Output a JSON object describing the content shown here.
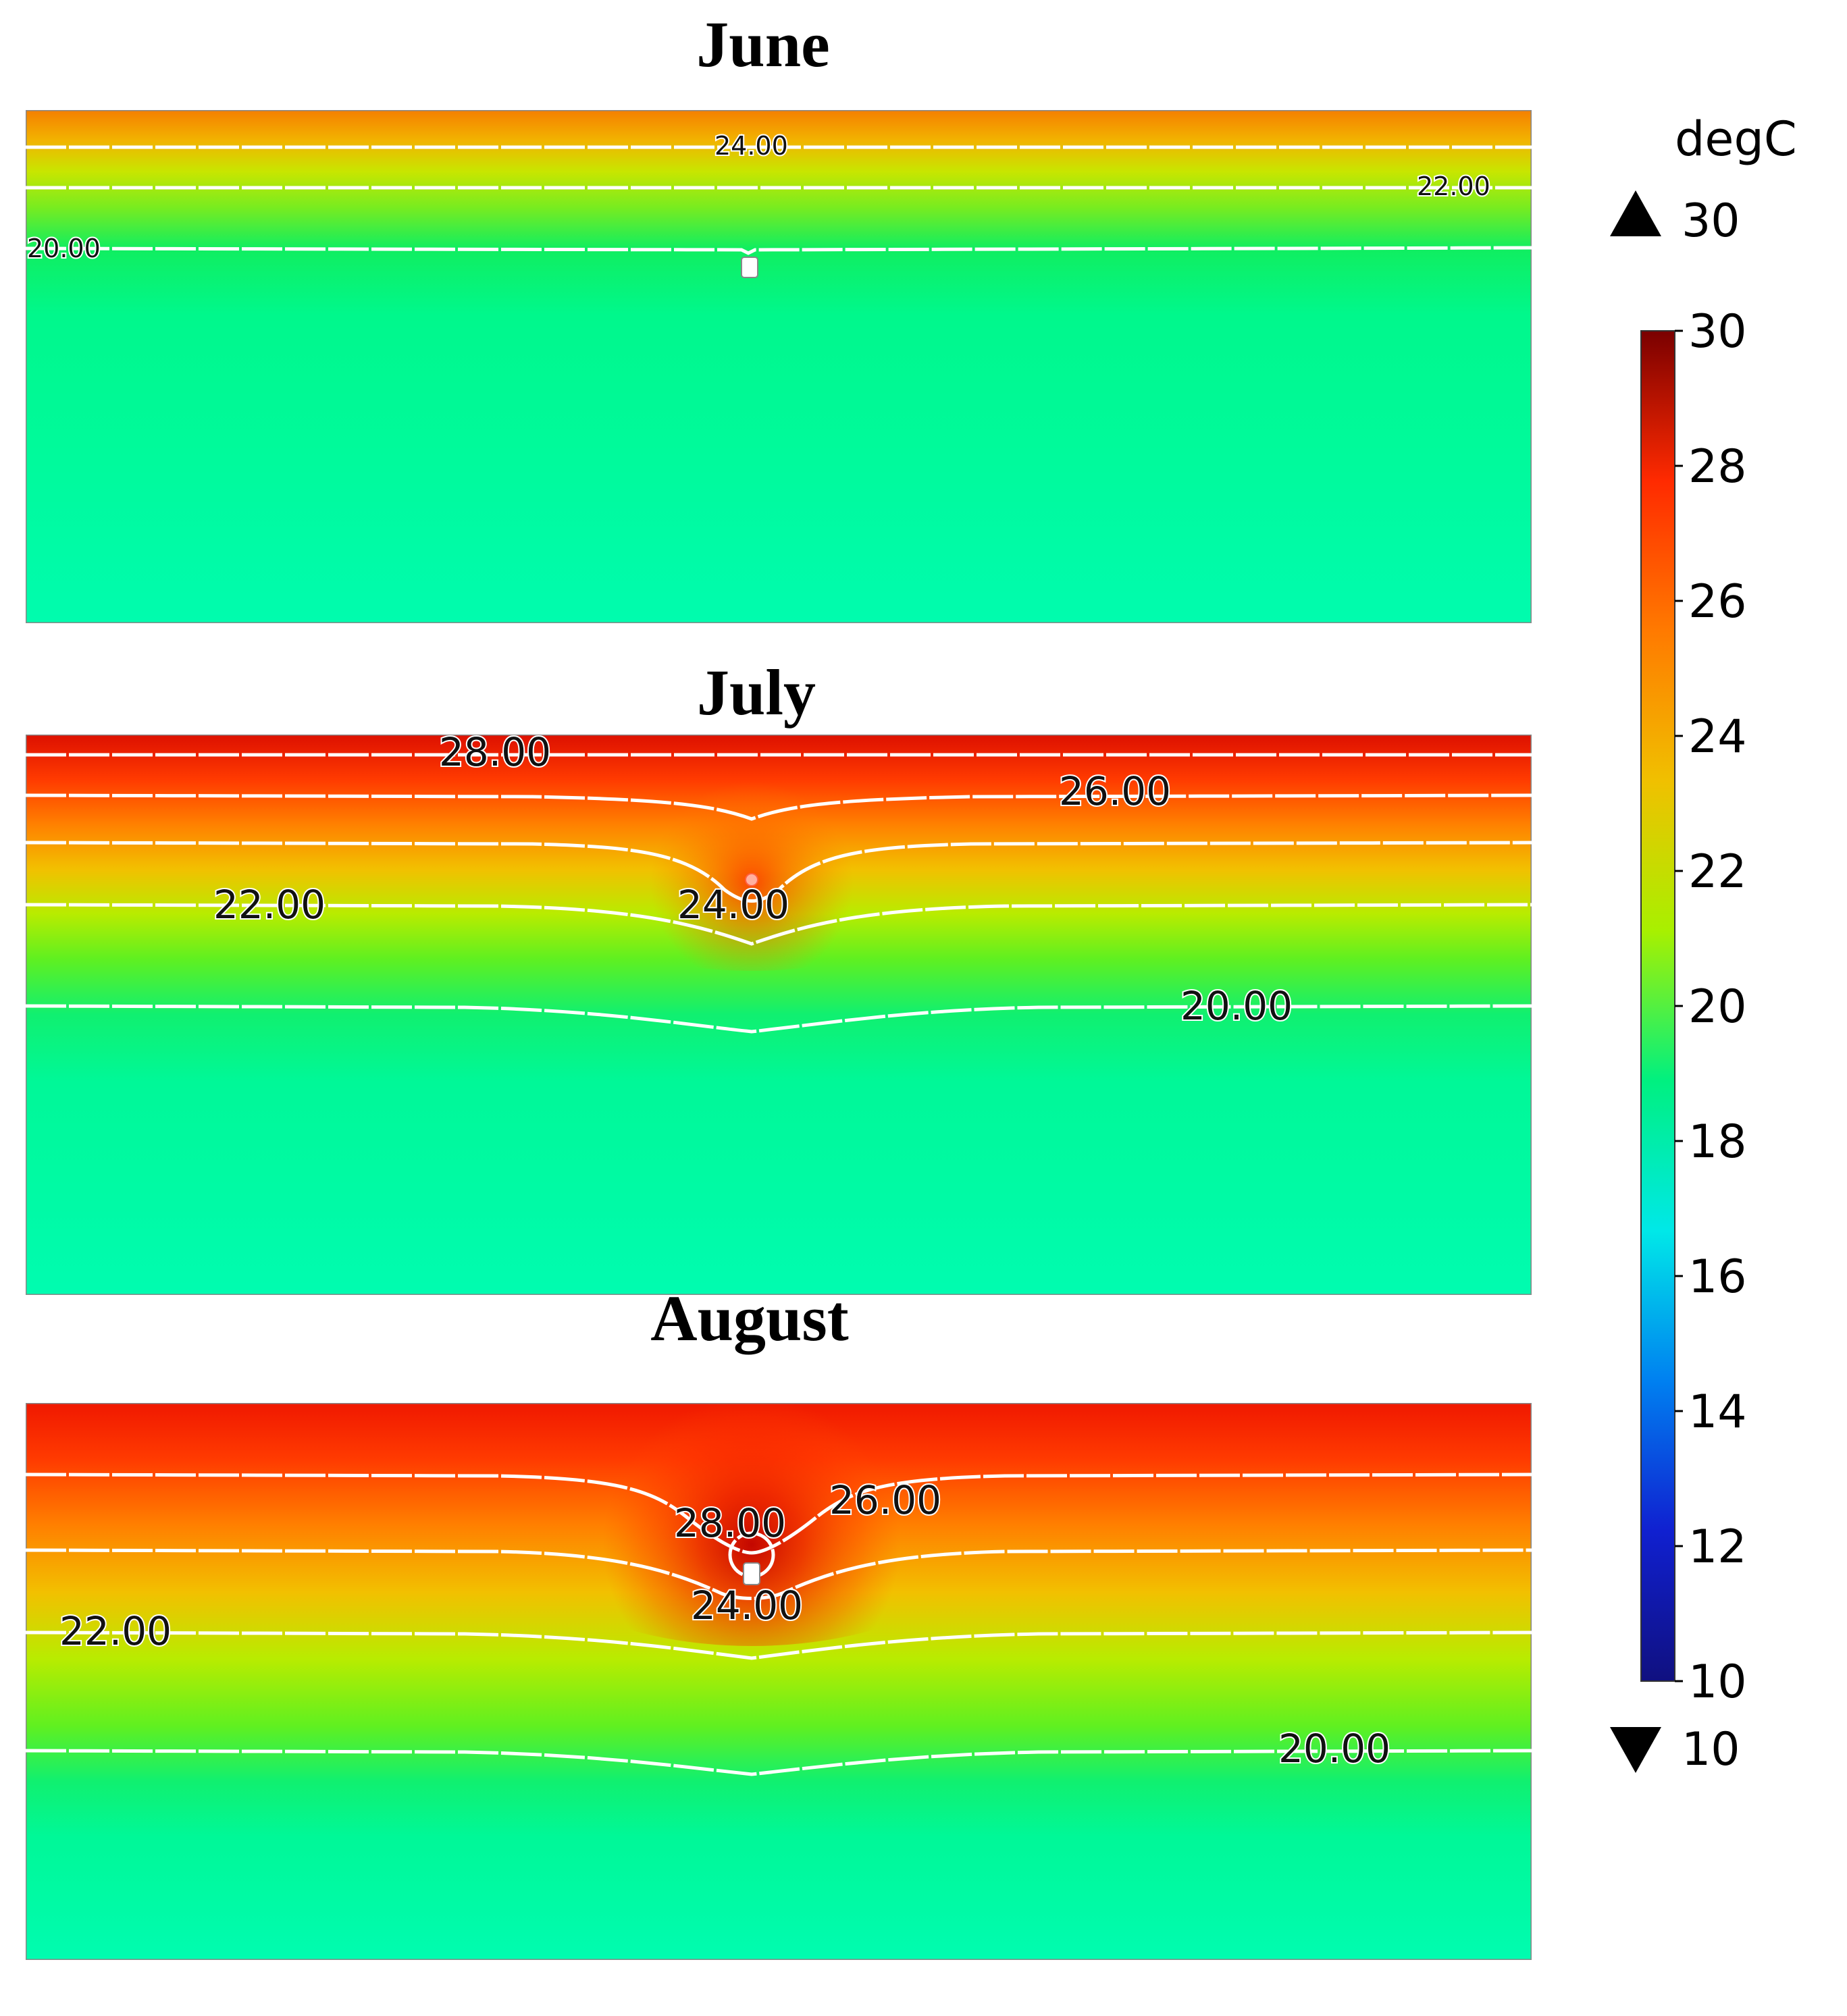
{
  "chart_data": [
    {
      "type": "heatmap",
      "title": "June",
      "unit": "degC",
      "background_temperature": 19,
      "surface_color": "#f57f00",
      "contours": [
        {
          "value": 24,
          "label": "24.00"
        },
        {
          "value": 22,
          "label": "22.00"
        },
        {
          "value": 20,
          "label": "20.00"
        }
      ]
    },
    {
      "type": "heatmap",
      "title": "July",
      "unit": "degC",
      "background_temperature": 19,
      "surface_color": "#dd1000",
      "contours": [
        {
          "value": 28,
          "label": "28.00"
        },
        {
          "value": 26,
          "label": "26.00"
        },
        {
          "value": 24,
          "label": "24.00"
        },
        {
          "value": 22,
          "label": "22.00"
        },
        {
          "value": 20,
          "label": "20.00"
        }
      ]
    },
    {
      "type": "heatmap",
      "title": "August",
      "unit": "degC",
      "background_temperature": 19,
      "surface_color": "#f01800",
      "contours": [
        {
          "value": 28,
          "label": "28.00"
        },
        {
          "value": 26,
          "label": "26.00"
        },
        {
          "value": 24,
          "label": "24.00"
        },
        {
          "value": 22,
          "label": "22.00"
        },
        {
          "value": 20,
          "label": "20.00"
        }
      ]
    }
  ],
  "colorbar": {
    "unit": "degC",
    "max_label": "30",
    "min_label": "10",
    "range": [
      10,
      30
    ],
    "ticks": [
      "30",
      "28",
      "26",
      "24",
      "22",
      "20",
      "18",
      "16",
      "14",
      "12",
      "10"
    ],
    "colors": [
      "#7a0000",
      "#ff2a00",
      "#ff7a00",
      "#f0c000",
      "#a8f000",
      "#00f080",
      "#00e8e8",
      "#0080f0",
      "#1020d0",
      "#101080"
    ]
  }
}
